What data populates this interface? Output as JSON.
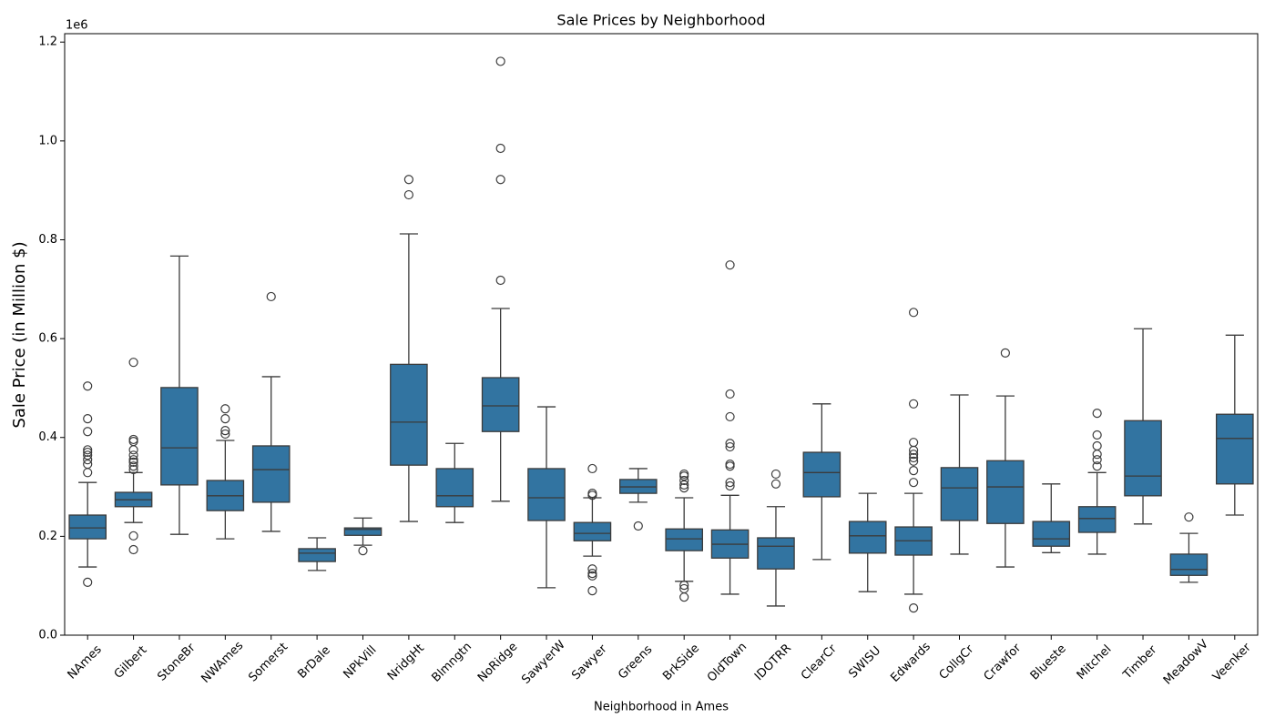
{
  "chart_data": {
    "type": "box",
    "title": "Sale Prices by Neighborhood",
    "xlabel": "Neighborhood in Ames",
    "ylabel": "Sale Price (in Million $)",
    "y_offset_label": "1e6",
    "color": "#3274a1",
    "categories": [
      "NAmes",
      "Gilbert",
      "StoneBr",
      "NWAmes",
      "Somerst",
      "BrDale",
      "NPkVill",
      "NridgHt",
      "Blmngtn",
      "NoRidge",
      "SawyerW",
      "Sawyer",
      "Greens",
      "BrkSide",
      "OldTown",
      "IDOTRR",
      "ClearCr",
      "SWISU",
      "Edwards",
      "CollgCr",
      "Crawfor",
      "Blueste",
      "Mitchel",
      "Timber",
      "MeadowV",
      "Veenker"
    ],
    "whisker_low": [
      0.138,
      0.228,
      0.204,
      0.195,
      0.21,
      0.131,
      0.182,
      0.23,
      0.228,
      0.271,
      0.096,
      0.16,
      0.269,
      0.109,
      0.083,
      0.059,
      0.153,
      0.088,
      0.083,
      0.164,
      0.138,
      0.167,
      0.164,
      0.225,
      0.107,
      0.243
    ],
    "q1": [
      0.195,
      0.26,
      0.304,
      0.252,
      0.269,
      0.149,
      0.202,
      0.344,
      0.26,
      0.412,
      0.232,
      0.191,
      0.287,
      0.171,
      0.156,
      0.134,
      0.28,
      0.166,
      0.162,
      0.232,
      0.226,
      0.18,
      0.208,
      0.282,
      0.121,
      0.306
    ],
    "median": [
      0.217,
      0.274,
      0.379,
      0.282,
      0.335,
      0.166,
      0.214,
      0.431,
      0.282,
      0.464,
      0.278,
      0.206,
      0.3,
      0.195,
      0.184,
      0.18,
      0.329,
      0.201,
      0.191,
      0.298,
      0.3,
      0.195,
      0.236,
      0.322,
      0.133,
      0.398
    ],
    "q3": [
      0.243,
      0.289,
      0.501,
      0.313,
      0.383,
      0.175,
      0.217,
      0.548,
      0.337,
      0.521,
      0.337,
      0.228,
      0.315,
      0.215,
      0.213,
      0.197,
      0.37,
      0.23,
      0.219,
      0.339,
      0.353,
      0.23,
      0.26,
      0.434,
      0.164,
      0.447
    ],
    "whisker_high": [
      0.309,
      0.329,
      0.767,
      0.394,
      0.523,
      0.197,
      0.237,
      0.812,
      0.388,
      0.661,
      0.462,
      0.278,
      0.337,
      0.278,
      0.283,
      0.26,
      0.468,
      0.287,
      0.287,
      0.486,
      0.484,
      0.306,
      0.329,
      0.62,
      0.206,
      0.607
    ],
    "outliers": [
      [
        0.107,
        0.329,
        0.346,
        0.355,
        0.364,
        0.37,
        0.375,
        0.412,
        0.438,
        0.504
      ],
      [
        0.173,
        0.201,
        0.335,
        0.342,
        0.35,
        0.355,
        0.364,
        0.375,
        0.392,
        0.396,
        0.552
      ],
      [],
      [
        0.407,
        0.414,
        0.438,
        0.458
      ],
      [
        0.685
      ],
      [],
      [
        0.171
      ],
      [
        0.891,
        0.922
      ],
      [],
      [
        0.718,
        0.922,
        0.985,
        1.161
      ],
      [],
      [
        0.09,
        0.12,
        0.125,
        0.134,
        0.283,
        0.287,
        0.337
      ],
      [
        0.221
      ],
      [
        0.077,
        0.094,
        0.101,
        0.298,
        0.304,
        0.313,
        0.322,
        0.326
      ],
      [
        0.302,
        0.309,
        0.342,
        0.346,
        0.381,
        0.388,
        0.442,
        0.488,
        0.749
      ],
      [
        0.306,
        0.326
      ],
      [],
      [],
      [
        0.055,
        0.309,
        0.333,
        0.352,
        0.359,
        0.366,
        0.374,
        0.39,
        0.468,
        0.653
      ],
      [],
      [
        0.571
      ],
      [],
      [
        0.342,
        0.355,
        0.366,
        0.383,
        0.405,
        0.449
      ],
      [],
      [
        0.239
      ],
      []
    ],
    "ylim": [
      0,
      1.217
    ],
    "yticks": [
      {
        "value": 0,
        "label": "0.0"
      },
      0.2,
      0.4,
      0.6,
      0.8,
      {
        "value": 1,
        "label": "1.0"
      },
      1.2
    ]
  }
}
